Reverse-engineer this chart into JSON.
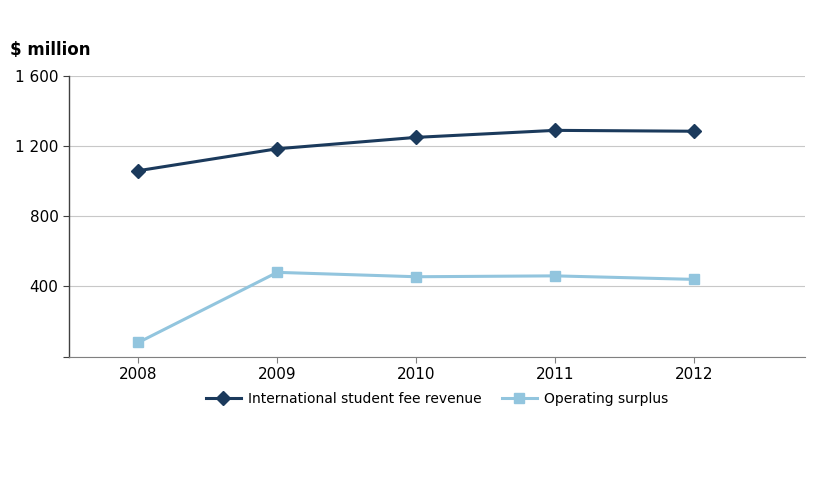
{
  "years": [
    2008,
    2009,
    2010,
    2011,
    2012
  ],
  "intl_fee_revenue": [
    1060,
    1185,
    1250,
    1290,
    1285
  ],
  "operating_surplus": [
    80,
    480,
    455,
    460,
    440
  ],
  "ylim": [
    0,
    1600
  ],
  "yticks": [
    0,
    400,
    800,
    1200,
    1600
  ],
  "ytick_labels": [
    "",
    "400",
    "800",
    "1 200",
    "1 600"
  ],
  "ylabel": "$ million",
  "line1_color": "#1b3a5c",
  "line2_color": "#92c5de",
  "line1_label": "International student fee revenue",
  "line2_label": "Operating surplus",
  "background_color": "#ffffff",
  "grid_color": "#c8c8c8",
  "axis_fontsize": 11,
  "legend_fontsize": 10,
  "ylabel_fontsize": 12
}
